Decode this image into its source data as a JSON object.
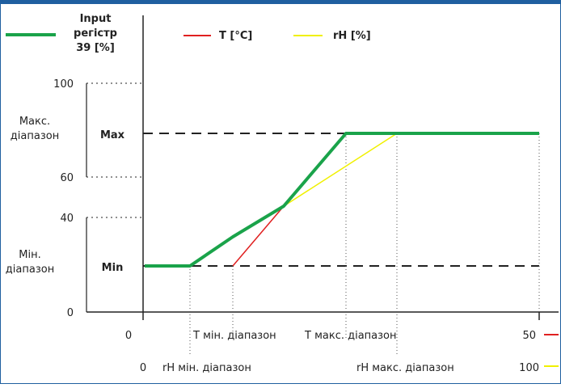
{
  "legend": {
    "input": {
      "line1": "Input",
      "line2": "регістр",
      "line3": "39  [%]",
      "color": "#1aa34a"
    },
    "temperature": {
      "label": "T [°C]",
      "color": "#e02020"
    },
    "humidity": {
      "label": "rH [%]",
      "color": "#f0f000"
    }
  },
  "y_axis": {
    "ticks": [
      "100",
      "60",
      "40",
      "0"
    ],
    "max_range": {
      "line1": "Макс.",
      "line2": "діапазон"
    },
    "min_range": {
      "line1": "Мін.",
      "line2": "діапазон"
    },
    "max_label": "Max",
    "min_label": "Min"
  },
  "x_axis_temperature": {
    "start": "0",
    "min_label": "T мін. діапазон",
    "max_label": "T макс. діапазон",
    "end": "50"
  },
  "x_axis_humidity": {
    "start": "0",
    "min_label": "rH мін. діапазон",
    "max_label": "rH макс. діапазон",
    "end": "100"
  }
}
